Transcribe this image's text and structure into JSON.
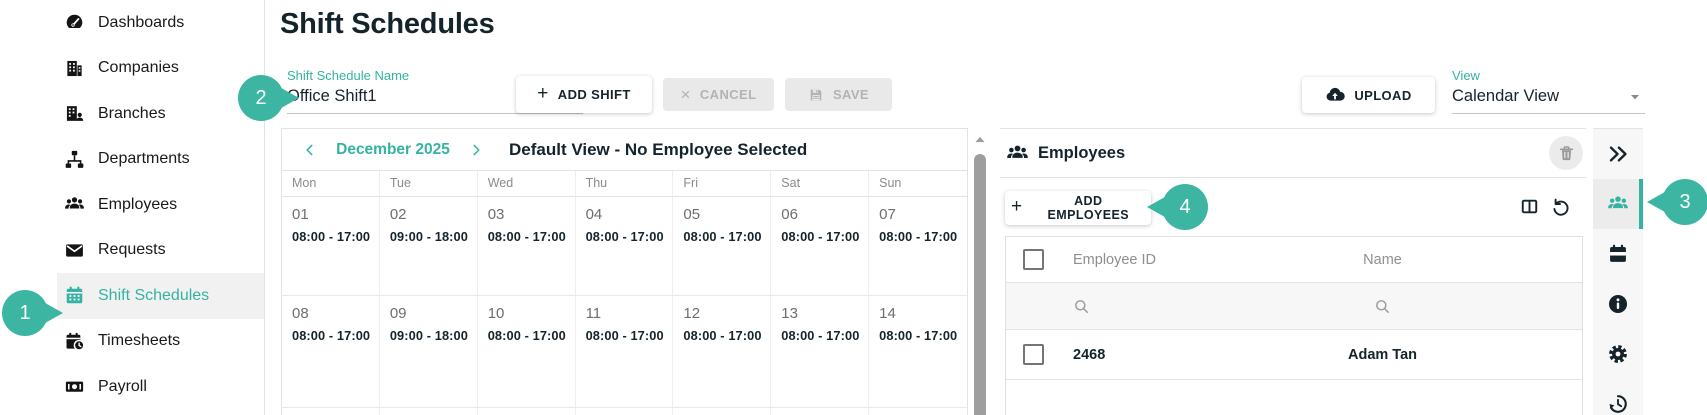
{
  "accent": "#3cb5a3",
  "annotations": {
    "one": "1",
    "two": "2",
    "three": "3",
    "four": "4"
  },
  "sidebar": {
    "items": [
      {
        "label": "Dashboards",
        "icon": "dashboard-icon",
        "active": false
      },
      {
        "label": "Companies",
        "icon": "company-icon",
        "active": false
      },
      {
        "label": "Branches",
        "icon": "branch-icon",
        "active": false
      },
      {
        "label": "Departments",
        "icon": "department-icon",
        "active": false
      },
      {
        "label": "Employees",
        "icon": "employees-icon",
        "active": false
      },
      {
        "label": "Requests",
        "icon": "requests-icon",
        "active": false
      },
      {
        "label": "Shift Schedules",
        "icon": "shift-schedule-icon",
        "active": true
      },
      {
        "label": "Timesheets",
        "icon": "timesheet-icon",
        "active": false
      },
      {
        "label": "Payroll",
        "icon": "payroll-icon",
        "active": false
      }
    ]
  },
  "header": {
    "title": "Shift Schedules"
  },
  "toolbar": {
    "schedule_field_label": "Shift Schedule Name",
    "schedule_field_value": "Office Shift1",
    "add_shift_label": "ADD SHIFT",
    "cancel_label": "CANCEL",
    "save_label": "SAVE",
    "upload_label": "UPLOAD",
    "view_field_label": "View",
    "view_field_value": "Calendar View"
  },
  "calendar": {
    "month": "December 2025",
    "subtitle": "Default View - No Employee Selected",
    "day_headers": [
      "Mon",
      "Tue",
      "Wed",
      "Thu",
      "Fri",
      "Sat",
      "Sun"
    ],
    "weeks": [
      [
        {
          "date": "01",
          "time": "08:00 - 17:00"
        },
        {
          "date": "02",
          "time": "09:00 - 18:00"
        },
        {
          "date": "03",
          "time": "08:00 - 17:00"
        },
        {
          "date": "04",
          "time": "08:00 - 17:00"
        },
        {
          "date": "05",
          "time": "08:00 - 17:00"
        },
        {
          "date": "06",
          "time": "08:00 - 17:00"
        },
        {
          "date": "07",
          "time": "08:00 - 17:00"
        }
      ],
      [
        {
          "date": "08",
          "time": "08:00 - 17:00"
        },
        {
          "date": "09",
          "time": "09:00 - 18:00"
        },
        {
          "date": "10",
          "time": "08:00 - 17:00"
        },
        {
          "date": "11",
          "time": "08:00 - 17:00"
        },
        {
          "date": "12",
          "time": "08:00 - 17:00"
        },
        {
          "date": "13",
          "time": "08:00 - 17:00"
        },
        {
          "date": "14",
          "time": "08:00 - 17:00"
        }
      ]
    ]
  },
  "employees_panel": {
    "title": "Employees",
    "add_button_label": "ADD EMPLOYEES",
    "columns": [
      "Employee ID",
      "Name"
    ],
    "rows": [
      {
        "id": "2468",
        "name": "Adam Tan"
      }
    ]
  }
}
